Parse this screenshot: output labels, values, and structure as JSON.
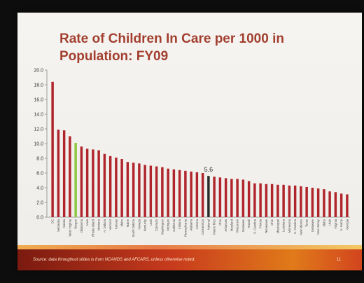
{
  "chart_data": {
    "type": "bar",
    "title": "Rate of Children In Care per 1000 in Population: FY09",
    "xlabel": "",
    "ylabel": "",
    "ylim": [
      0,
      20
    ],
    "yticks": [
      "0.0",
      "2.0",
      "4.0",
      "6.0",
      "8.0",
      "10.0",
      "12.0",
      "14.0",
      "16.0",
      "18.0",
      "20.0"
    ],
    "grid": false,
    "categories": [
      "DC",
      "Nebraska",
      "Alaska",
      "West Virginia",
      "Oregon",
      "Oklahoma",
      "Iowa",
      "Rhode Island",
      "Montana",
      "N. Dakota",
      "Vermont",
      "Kansas",
      "Idaho",
      "Maine",
      "South Dakota",
      "Nevada",
      "Kentucky",
      "Utah",
      "Colorado",
      "Washington",
      "Michigan",
      "California",
      "Indiana",
      "Pennsylvania",
      "Alabama",
      "Arizona",
      "Connecticut",
      "National",
      "Puerto Rico",
      "Ohio",
      "Arkansas",
      "Maryland",
      "Wisconsin",
      "Delaware",
      "Hawaii",
      "S. Carolina",
      "Florida",
      "Tennessee",
      "Ohio",
      "Mississippi",
      "Louisiana",
      "Minnesota",
      "N. Carolina",
      "New Mexico",
      "Texas",
      "Delaware",
      "New Jersey",
      "Idaho",
      "Utah",
      "Virginia",
      "N. Hamp",
      "Georgia"
    ],
    "values": [
      18.4,
      11.9,
      11.8,
      11.0,
      10.1,
      9.6,
      9.3,
      9.2,
      9.1,
      8.6,
      8.3,
      8.1,
      7.9,
      7.5,
      7.4,
      7.3,
      7.1,
      7.0,
      6.9,
      6.8,
      6.6,
      6.5,
      6.4,
      6.3,
      6.2,
      6.1,
      6.0,
      5.6,
      5.5,
      5.4,
      5.3,
      5.2,
      5.2,
      5.1,
      4.9,
      4.6,
      4.6,
      4.5,
      4.5,
      4.4,
      4.4,
      4.3,
      4.3,
      4.2,
      4.1,
      4.0,
      3.9,
      3.8,
      3.5,
      3.4,
      3.2,
      3.1
    ],
    "highlight_index": 27,
    "highlight_label": "5.6",
    "colors": {
      "default": "#b0252b",
      "highlight": "#2b2b2b",
      "green": "#8dc63f"
    },
    "green_index": 4
  },
  "footer": {
    "source": "Source: data throughout slides is from NCANDS and AFCARS, unless otherwise noted.",
    "page": "11"
  }
}
